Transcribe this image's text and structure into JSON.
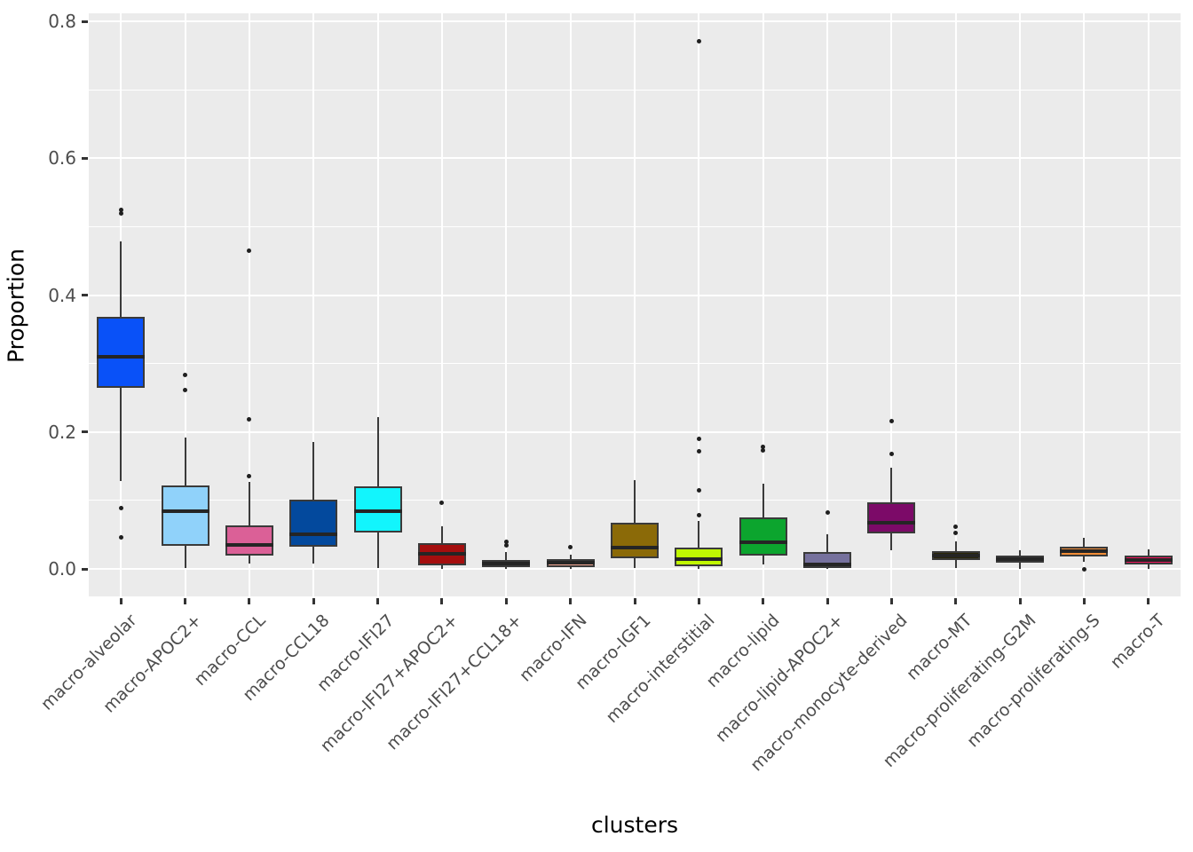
{
  "chart_data": {
    "type": "boxplot",
    "title": "",
    "xlabel": "clusters",
    "ylabel": "Proportion",
    "ylim": [
      0.0,
      0.8
    ],
    "y_major_ticks": [
      0.0,
      0.2,
      0.4,
      0.6,
      0.8
    ],
    "y_minor_ticks": [
      0.1,
      0.3,
      0.5,
      0.7
    ],
    "grid": "on",
    "legend": "none",
    "categories": [
      "macro-alveolar",
      "macro-APOC2+",
      "macro-CCL",
      "macro-CCL18",
      "macro-IFI27",
      "macro-IFI27+APOC2+",
      "macro-IFI27+CCL18+",
      "macro-IFN",
      "macro-IGF1",
      "macro-interstitial",
      "macro-lipid",
      "macro-lipid-APOC2+",
      "macro-monocyte-derived",
      "macro-MT",
      "macro-proliferating-G2M",
      "macro-proliferating-S",
      "macro-T"
    ],
    "series": [
      {
        "name": "macro-alveolar",
        "color": "#0951F8",
        "whisker_low": 0.129,
        "q1": 0.265,
        "median": 0.31,
        "q3": 0.369,
        "whisker_high": 0.479,
        "outliers": [
          0.525,
          0.519,
          0.089,
          0.046
        ]
      },
      {
        "name": "macro-APOC2+",
        "color": "#90D2FA",
        "whisker_low": 0.001,
        "q1": 0.034,
        "median": 0.084,
        "q3": 0.122,
        "whisker_high": 0.192,
        "outliers": [
          0.284,
          0.262
        ]
      },
      {
        "name": "macro-CCL",
        "color": "#DB6097",
        "whisker_low": 0.008,
        "q1": 0.019,
        "median": 0.035,
        "q3": 0.064,
        "whisker_high": 0.127,
        "outliers": [
          0.465,
          0.218,
          0.135
        ]
      },
      {
        "name": "macro-CCL18",
        "color": "#03499D",
        "whisker_low": 0.008,
        "q1": 0.032,
        "median": 0.05,
        "q3": 0.101,
        "whisker_high": 0.186,
        "outliers": []
      },
      {
        "name": "macro-IFI27",
        "color": "#12F5FD",
        "whisker_low": 0.001,
        "q1": 0.053,
        "median": 0.084,
        "q3": 0.121,
        "whisker_high": 0.222,
        "outliers": []
      },
      {
        "name": "macro-IFI27+APOC2+",
        "color": "#A50E0E",
        "whisker_low": 0.0,
        "q1": 0.005,
        "median": 0.022,
        "q3": 0.037,
        "whisker_high": 0.062,
        "outliers": [
          0.096
        ]
      },
      {
        "name": "macro-IFI27+CCL18+",
        "color": "#6F7358",
        "whisker_low": 0.0,
        "q1": 0.002,
        "median": 0.008,
        "q3": 0.013,
        "whisker_high": 0.025,
        "outliers": [
          0.04,
          0.035
        ]
      },
      {
        "name": "macro-IFN",
        "color": "#F4A893",
        "whisker_low": 0.0,
        "q1": 0.003,
        "median": 0.009,
        "q3": 0.014,
        "whisker_high": 0.021,
        "outliers": [
          0.032
        ]
      },
      {
        "name": "macro-IGF1",
        "color": "#8B6A08",
        "whisker_low": 0.001,
        "q1": 0.016,
        "median": 0.031,
        "q3": 0.067,
        "whisker_high": 0.13,
        "outliers": []
      },
      {
        "name": "macro-interstitial",
        "color": "#C0F702",
        "whisker_low": 0.0,
        "q1": 0.004,
        "median": 0.014,
        "q3": 0.031,
        "whisker_high": 0.07,
        "outliers": [
          0.771,
          0.19,
          0.172,
          0.115,
          0.078
        ]
      },
      {
        "name": "macro-lipid",
        "color": "#0CA52E",
        "whisker_low": 0.007,
        "q1": 0.02,
        "median": 0.039,
        "q3": 0.075,
        "whisker_high": 0.125,
        "outliers": [
          0.179,
          0.173
        ]
      },
      {
        "name": "macro-lipid-APOC2+",
        "color": "#76719D",
        "whisker_low": 0.0,
        "q1": 0.001,
        "median": 0.007,
        "q3": 0.024,
        "whisker_high": 0.05,
        "outliers": [
          0.083
        ]
      },
      {
        "name": "macro-monocyte-derived",
        "color": "#7C0A68",
        "whisker_low": 0.027,
        "q1": 0.052,
        "median": 0.067,
        "q3": 0.097,
        "whisker_high": 0.148,
        "outliers": [
          0.216,
          0.168
        ]
      },
      {
        "name": "macro-MT",
        "color": "#2A2608",
        "whisker_low": 0.001,
        "q1": 0.013,
        "median": 0.02,
        "q3": 0.026,
        "whisker_high": 0.04,
        "outliers": [
          0.061,
          0.053
        ]
      },
      {
        "name": "macro-proliferating-G2M",
        "color": "#8B21B5",
        "whisker_low": 0.0,
        "q1": 0.009,
        "median": 0.014,
        "q3": 0.02,
        "whisker_high": 0.027,
        "outliers": []
      },
      {
        "name": "macro-proliferating-S",
        "color": "#F18C36",
        "whisker_low": 0.01,
        "q1": 0.018,
        "median": 0.026,
        "q3": 0.033,
        "whisker_high": 0.045,
        "outliers": [
          0.0
        ]
      },
      {
        "name": "macro-T",
        "color": "#EC115A",
        "whisker_low": 0.0,
        "q1": 0.007,
        "median": 0.013,
        "q3": 0.02,
        "whisker_high": 0.029,
        "outliers": []
      }
    ]
  },
  "style": {
    "panel_background": "#EBEBEB",
    "grid_color": "#FFFFFF",
    "box_border_color": "#3A3A3A",
    "median_color": "#252525",
    "outlier_color": "#1F1F1F",
    "tick_label_color": "#4D4D4D",
    "axis_title_color": "#000000"
  }
}
